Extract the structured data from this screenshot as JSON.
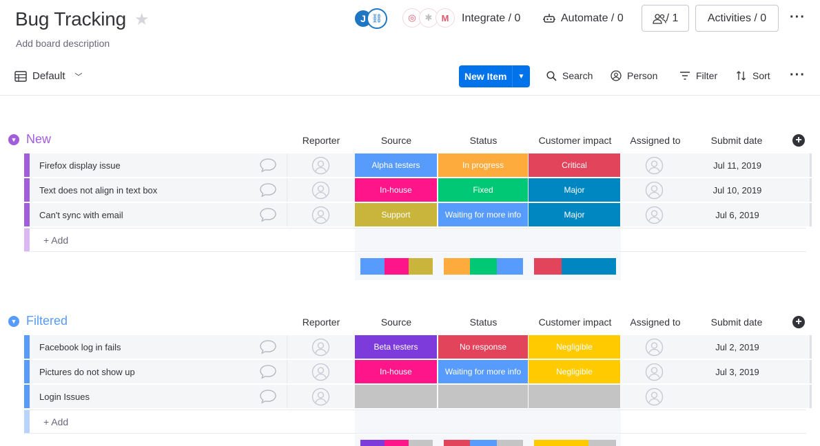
{
  "header": {
    "title": "Bug Tracking",
    "description": "Add board description",
    "avatar_initial": "J",
    "integrate_label": "Integrate / 0",
    "automate_label": "Automate / 0",
    "members_label": "/ 1",
    "activities_label": "Activities / 0"
  },
  "toolbar": {
    "view_label": "Default",
    "new_item_label": "New Item",
    "search_label": "Search",
    "person_label": "Person",
    "filter_label": "Filter",
    "sort_label": "Sort"
  },
  "columns": {
    "reporter": "Reporter",
    "source": "Source",
    "status": "Status",
    "impact": "Customer impact",
    "assigned": "Assigned to",
    "date": "Submit date"
  },
  "colors": {
    "purple": "#a25ddc",
    "blue": "#579bfc",
    "alpha_testers": "#579bfc",
    "in_house": "#ff158a",
    "support": "#c9b53c",
    "beta_testers": "#7e3bdc",
    "in_progress": "#fdab3d",
    "fixed": "#00c875",
    "waiting": "#579bfc",
    "no_response": "#e2445c",
    "critical": "#e2445c",
    "major": "#0086c0",
    "negligible": "#ffcb00",
    "empty": "#c4c4c4"
  },
  "groups": [
    {
      "title": "New",
      "add_label": "+ Add",
      "rows": [
        {
          "name": "Firefox display issue",
          "source": "Alpha testers",
          "status": "In progress",
          "impact": "Critical",
          "date": "Jul 11, 2019"
        },
        {
          "name": "Text does not align in text box",
          "source": "In-house",
          "status": "Fixed",
          "impact": "Major",
          "date": "Jul 10, 2019"
        },
        {
          "name": "Can't sync with email",
          "source": "Support",
          "status": "Waiting for more info",
          "impact": "Major",
          "date": "Jul 6, 2019"
        }
      ]
    },
    {
      "title": "Filtered",
      "add_label": "+ Add",
      "rows": [
        {
          "name": "Facebook log in fails",
          "source": "Beta testers",
          "status": "No response",
          "impact": "Negligible",
          "date": "Jul 2, 2019"
        },
        {
          "name": "Pictures do not show up",
          "source": "In-house",
          "status": "Waiting for more info",
          "impact": "Negligible",
          "date": "Jul 3, 2019"
        },
        {
          "name": "Login Issues",
          "source": "",
          "status": "",
          "impact": "",
          "date": ""
        }
      ]
    }
  ]
}
